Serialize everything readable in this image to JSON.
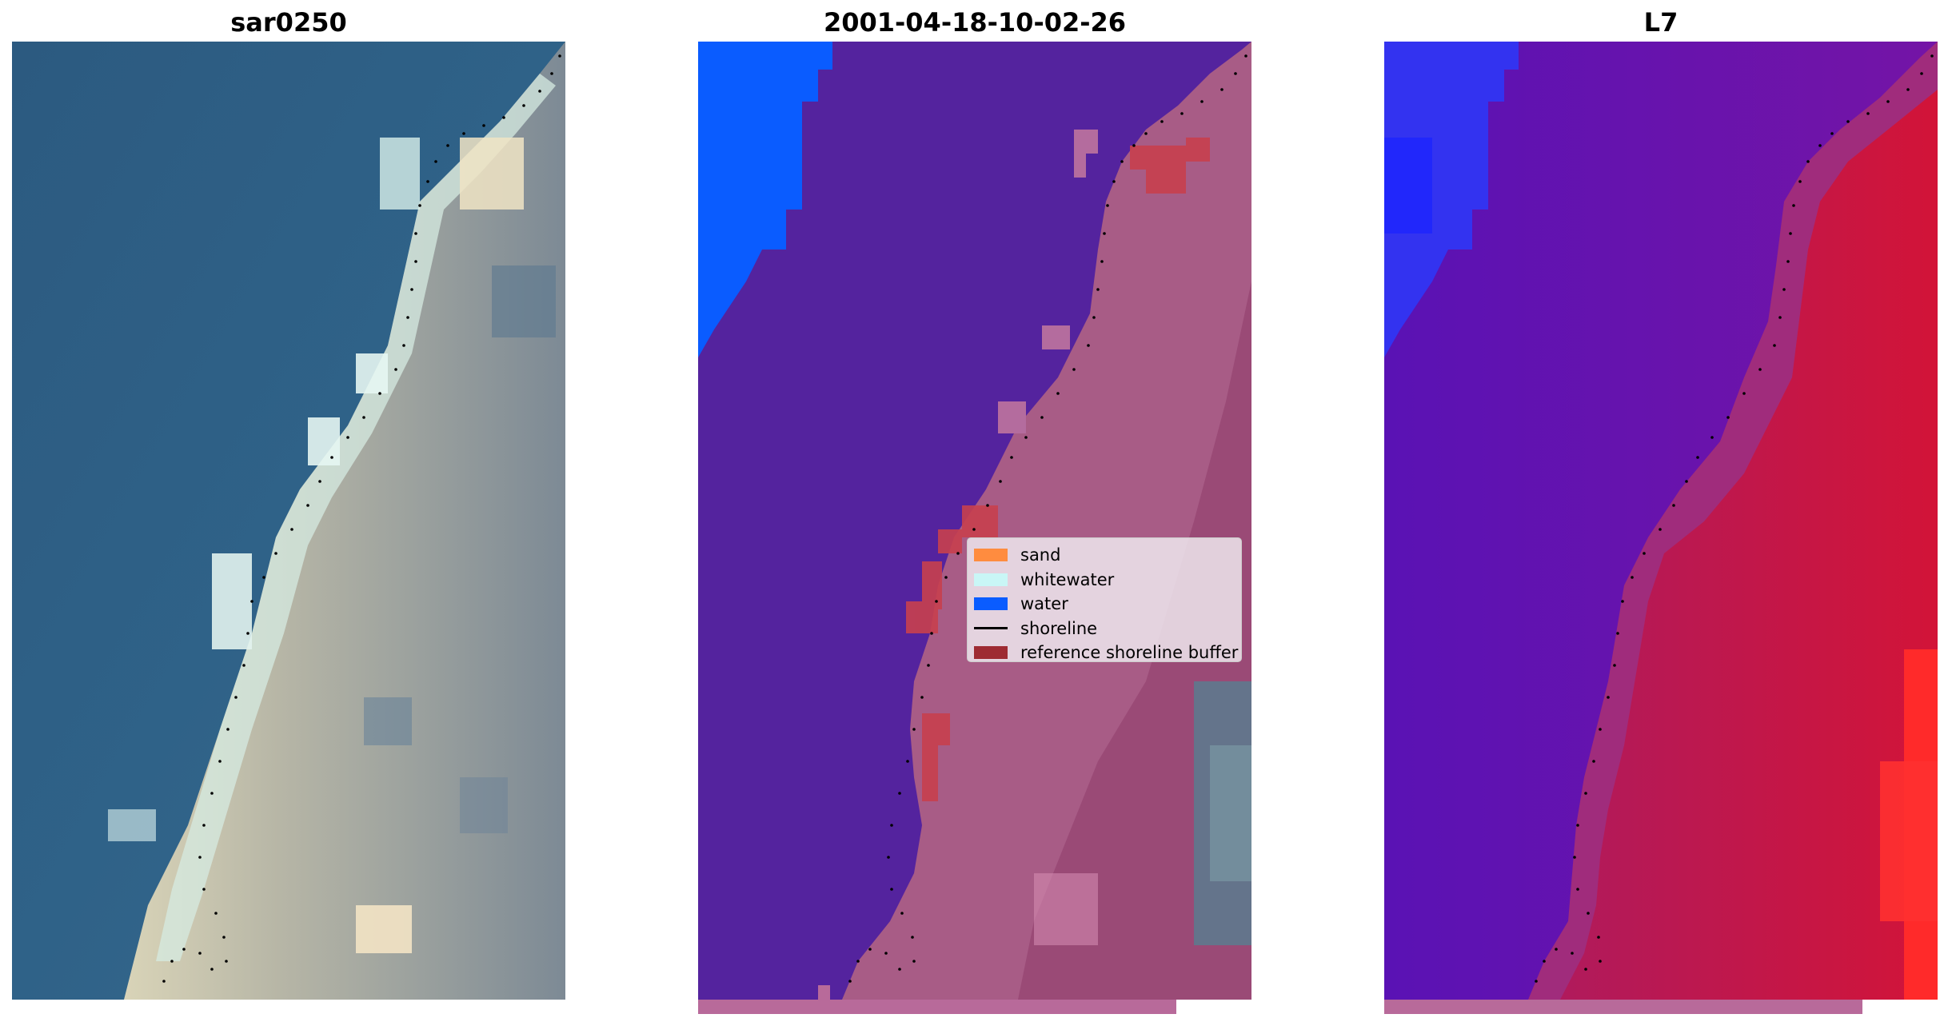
{
  "panels": [
    {
      "title": "sar0250",
      "image": "RGB satellite image"
    },
    {
      "title": "2001-04-18-10-02-26",
      "image": "classified image"
    },
    {
      "title": "L7",
      "image": "MNDWI image"
    }
  ],
  "legend": {
    "items": [
      {
        "label": "sand",
        "color": "#ff8c3f",
        "kind": "patch"
      },
      {
        "label": "whitewater",
        "color": "#c9f6f6",
        "kind": "patch"
      },
      {
        "label": "water",
        "color": "#0a5cff",
        "kind": "patch"
      },
      {
        "label": "shoreline",
        "color": "#000000",
        "kind": "line"
      },
      {
        "label": "reference shoreline buffer",
        "color": "#9e2b33",
        "kind": "patch"
      }
    ]
  },
  "colors": {
    "ocean": "#2f5f85",
    "surf": "#c8e6e0",
    "land_sand": "#d6cfb3",
    "class_water_overlay": "#5423a0",
    "class_land_overlay": "#b0607e",
    "mndwi_water": "#6a18b0",
    "mndwi_land": "#c8143a",
    "mndwi_blue": "#2244ff"
  }
}
